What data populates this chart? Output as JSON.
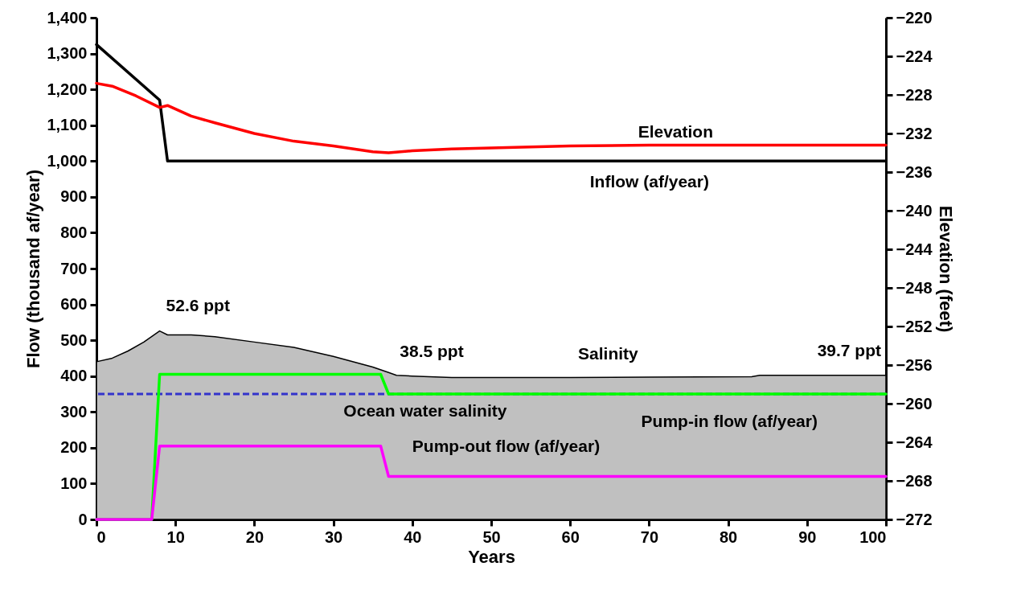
{
  "chart_data": {
    "type": "line",
    "xlabel": "Years",
    "ylabel": "Flow (thousand af/year)",
    "y2label": "Elevation (feet)",
    "xlim": [
      0,
      100
    ],
    "xticks": [
      0,
      10,
      20,
      30,
      40,
      50,
      60,
      70,
      80,
      90,
      100
    ],
    "ylim": [
      0,
      1400
    ],
    "yticks": [
      0,
      100,
      200,
      300,
      400,
      500,
      600,
      700,
      800,
      900,
      {
        "value": 1000,
        "label": "1,000"
      },
      {
        "value": 1100,
        "label": "1,100"
      },
      {
        "value": 1200,
        "label": "1,200"
      },
      {
        "value": 1300,
        "label": "1,300"
      },
      {
        "value": 1400,
        "label": "1,400"
      }
    ],
    "y2lim": [
      -272,
      -220
    ],
    "y2ticks": [
      -272,
      -268,
      -264,
      -260,
      -256,
      -252,
      -248,
      -244,
      -240,
      -236,
      -232,
      -228,
      -224,
      -220
    ],
    "grid": false,
    "series": [
      {
        "name": "Salinity",
        "type": "area",
        "color": "#c0c0c0",
        "x": [
          0,
          2,
          4,
          6,
          8,
          9,
          12,
          15,
          20,
          25,
          30,
          35,
          37,
          38,
          40,
          45,
          60,
          70,
          83,
          84,
          100
        ],
        "values": [
          440,
          450,
          470,
          495,
          526,
          515,
          515,
          510,
          495,
          480,
          455,
          425,
          410,
          402,
          400,
          396,
          396,
          397,
          398,
          402,
          402
        ]
      },
      {
        "name": "Inflow (af/year)",
        "color": "#000000",
        "x": [
          0,
          8,
          9,
          100
        ],
        "values": [
          1325,
          1170,
          1000,
          1000
        ]
      },
      {
        "name": "Elevation",
        "color": "#ff0000",
        "axis": "y2",
        "x": [
          0,
          2,
          5,
          8,
          9,
          12,
          15,
          20,
          25,
          30,
          35,
          37,
          40,
          45,
          50,
          60,
          70,
          100
        ],
        "values": [
          -226.8,
          -227.1,
          -228.1,
          -229.3,
          -229.1,
          -230.2,
          -230.9,
          -232,
          -232.8,
          -233.3,
          -233.9,
          -234,
          -233.8,
          -233.6,
          -233.5,
          -233.3,
          -233.2,
          -233.2
        ]
      },
      {
        "name": "Pump-in flow (af/year)",
        "color": "#00ff00",
        "x": [
          0,
          7,
          8,
          36,
          37,
          100
        ],
        "values": [
          0,
          0,
          405,
          405,
          350,
          350
        ]
      },
      {
        "name": "Pump-out flow (af/year)",
        "color": "#ff00ff",
        "x": [
          0,
          7,
          8,
          36,
          37,
          100
        ],
        "values": [
          0,
          0,
          205,
          205,
          120,
          120
        ]
      }
    ],
    "ref_lines": [
      {
        "axis": "y",
        "value": 350,
        "label": "Ocean water salinity",
        "color": "#3333cc",
        "line_style": "dashed"
      }
    ],
    "annotations": [
      {
        "text": "52.6 ppt",
        "x": 8,
        "y": 526
      },
      {
        "text": "38.5 ppt",
        "x": 37,
        "y": 405
      },
      {
        "text": "39.7 ppt",
        "x": 100,
        "y": 402
      }
    ]
  }
}
